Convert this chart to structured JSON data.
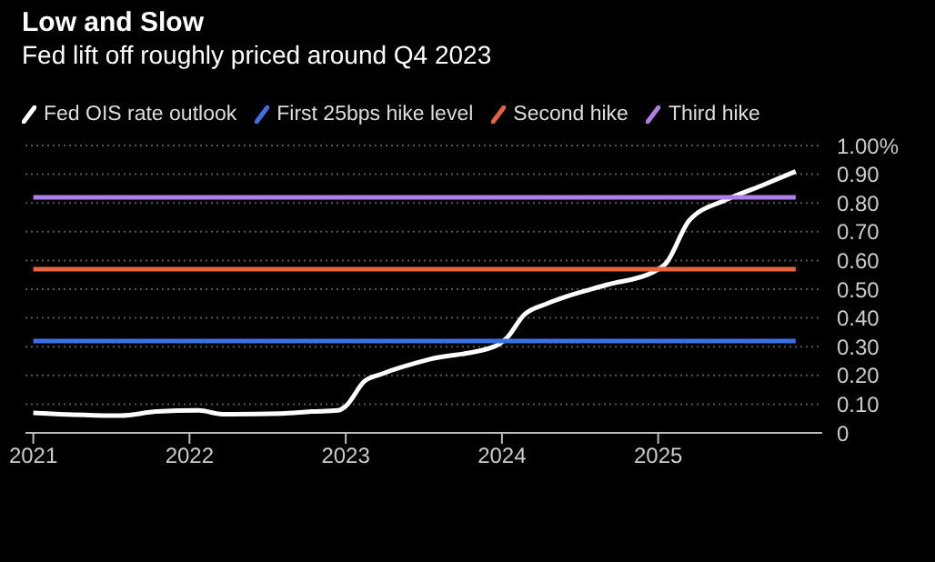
{
  "chart_data": {
    "type": "line",
    "title": "Low and Slow",
    "subtitle": "Fed lift off roughly priced around Q4 2023",
    "xlim": [
      2020.95,
      2026.05
    ],
    "xticks": [
      2021,
      2022,
      2023,
      2024,
      2025
    ],
    "ylim": [
      0,
      1
    ],
    "yticks": [
      0,
      {
        "value": 0.1,
        "label": "0.10"
      },
      {
        "value": 0.2,
        "label": "0.20"
      },
      {
        "value": 0.3,
        "label": "0.30"
      },
      {
        "value": 0.4,
        "label": "0.40"
      },
      {
        "value": 0.5,
        "label": "0.50"
      },
      {
        "value": 0.6,
        "label": "0.60"
      },
      {
        "value": 0.7,
        "label": "0.70"
      },
      {
        "value": 0.8,
        "label": "0.80"
      },
      {
        "value": 0.9,
        "label": "0.90"
      },
      {
        "value": 1,
        "label": "1.00%"
      }
    ],
    "grid": "y",
    "legend": "top left",
    "series": [
      {
        "name": "Fed OIS rate outlook",
        "color": "#ffffff",
        "x": [
          2021.0,
          2021.56,
          2021.79,
          2022.06,
          2022.21,
          2022.59,
          2022.78,
          2022.95,
          2023.0,
          2023.12,
          2023.23,
          2023.53,
          2023.95,
          2024.03,
          2024.14,
          2024.29,
          2024.67,
          2024.97,
          2025.05,
          2025.2,
          2025.43,
          2025.66,
          2025.88
        ],
        "values": [
          0.07,
          0.06,
          0.074,
          0.078,
          0.065,
          0.067,
          0.074,
          0.078,
          0.093,
          0.18,
          0.205,
          0.255,
          0.3,
          0.33,
          0.41,
          0.45,
          0.515,
          0.56,
          0.59,
          0.74,
          0.81,
          0.86,
          0.91
        ]
      },
      {
        "name": "First 25bps hike level",
        "color": "#3e6fe8",
        "x": [
          2021.0,
          2025.88
        ],
        "values": [
          0.32,
          0.32
        ]
      },
      {
        "name": "Second hike",
        "color": "#e8643c",
        "x": [
          2021.0,
          2025.88
        ],
        "values": [
          0.57,
          0.57
        ]
      },
      {
        "name": "Third hike",
        "color": "#b07ee8",
        "x": [
          2021.0,
          2025.88
        ],
        "values": [
          0.82,
          0.82
        ]
      }
    ]
  }
}
